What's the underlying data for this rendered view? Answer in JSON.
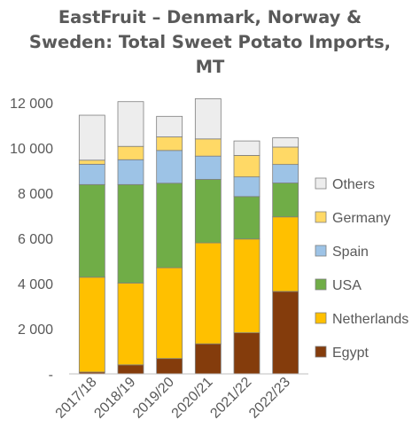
{
  "chart_data": {
    "type": "bar",
    "stacked": true,
    "title_lines": [
      "EastFruit – Denmark, Norway &",
      "Sweden: Total Sweet Potato Imports,",
      "MT"
    ],
    "xlabel": "",
    "ylabel": "",
    "ylim": [
      0,
      12000
    ],
    "yticks": [
      0,
      2000,
      4000,
      6000,
      8000,
      10000,
      12000
    ],
    "ytick_labels": [
      "-",
      "2 000",
      "4 000",
      "6 000",
      "8 000",
      "10 000",
      "12 000"
    ],
    "grid": false,
    "legend_position": "right",
    "categories": [
      "2017/18",
      "2018/19",
      "2019/20",
      "2020/21",
      "2021/22",
      "2022/23"
    ],
    "series": [
      {
        "name": "Egypt",
        "color": "#843c0c",
        "values": [
          80,
          400,
          680,
          1330,
          1820,
          3650
        ]
      },
      {
        "name": "Netherlands",
        "color": "#ffc000",
        "values": [
          4200,
          3620,
          4020,
          4470,
          4150,
          3300
        ]
      },
      {
        "name": "USA",
        "color": "#70ad47",
        "values": [
          4100,
          4360,
          3740,
          2810,
          1880,
          1500
        ]
      },
      {
        "name": "Spain",
        "color": "#9dc3e6",
        "values": [
          900,
          1100,
          1450,
          1030,
          870,
          820
        ]
      },
      {
        "name": "Germany",
        "color": "#ffd966",
        "values": [
          180,
          590,
          600,
          760,
          950,
          770
        ]
      },
      {
        "name": "Others",
        "color": "#ededed",
        "values": [
          1990,
          1980,
          910,
          1780,
          640,
          410
        ]
      }
    ],
    "legend_order": [
      "Others",
      "Germany",
      "Spain",
      "USA",
      "Netherlands",
      "Egypt"
    ]
  }
}
